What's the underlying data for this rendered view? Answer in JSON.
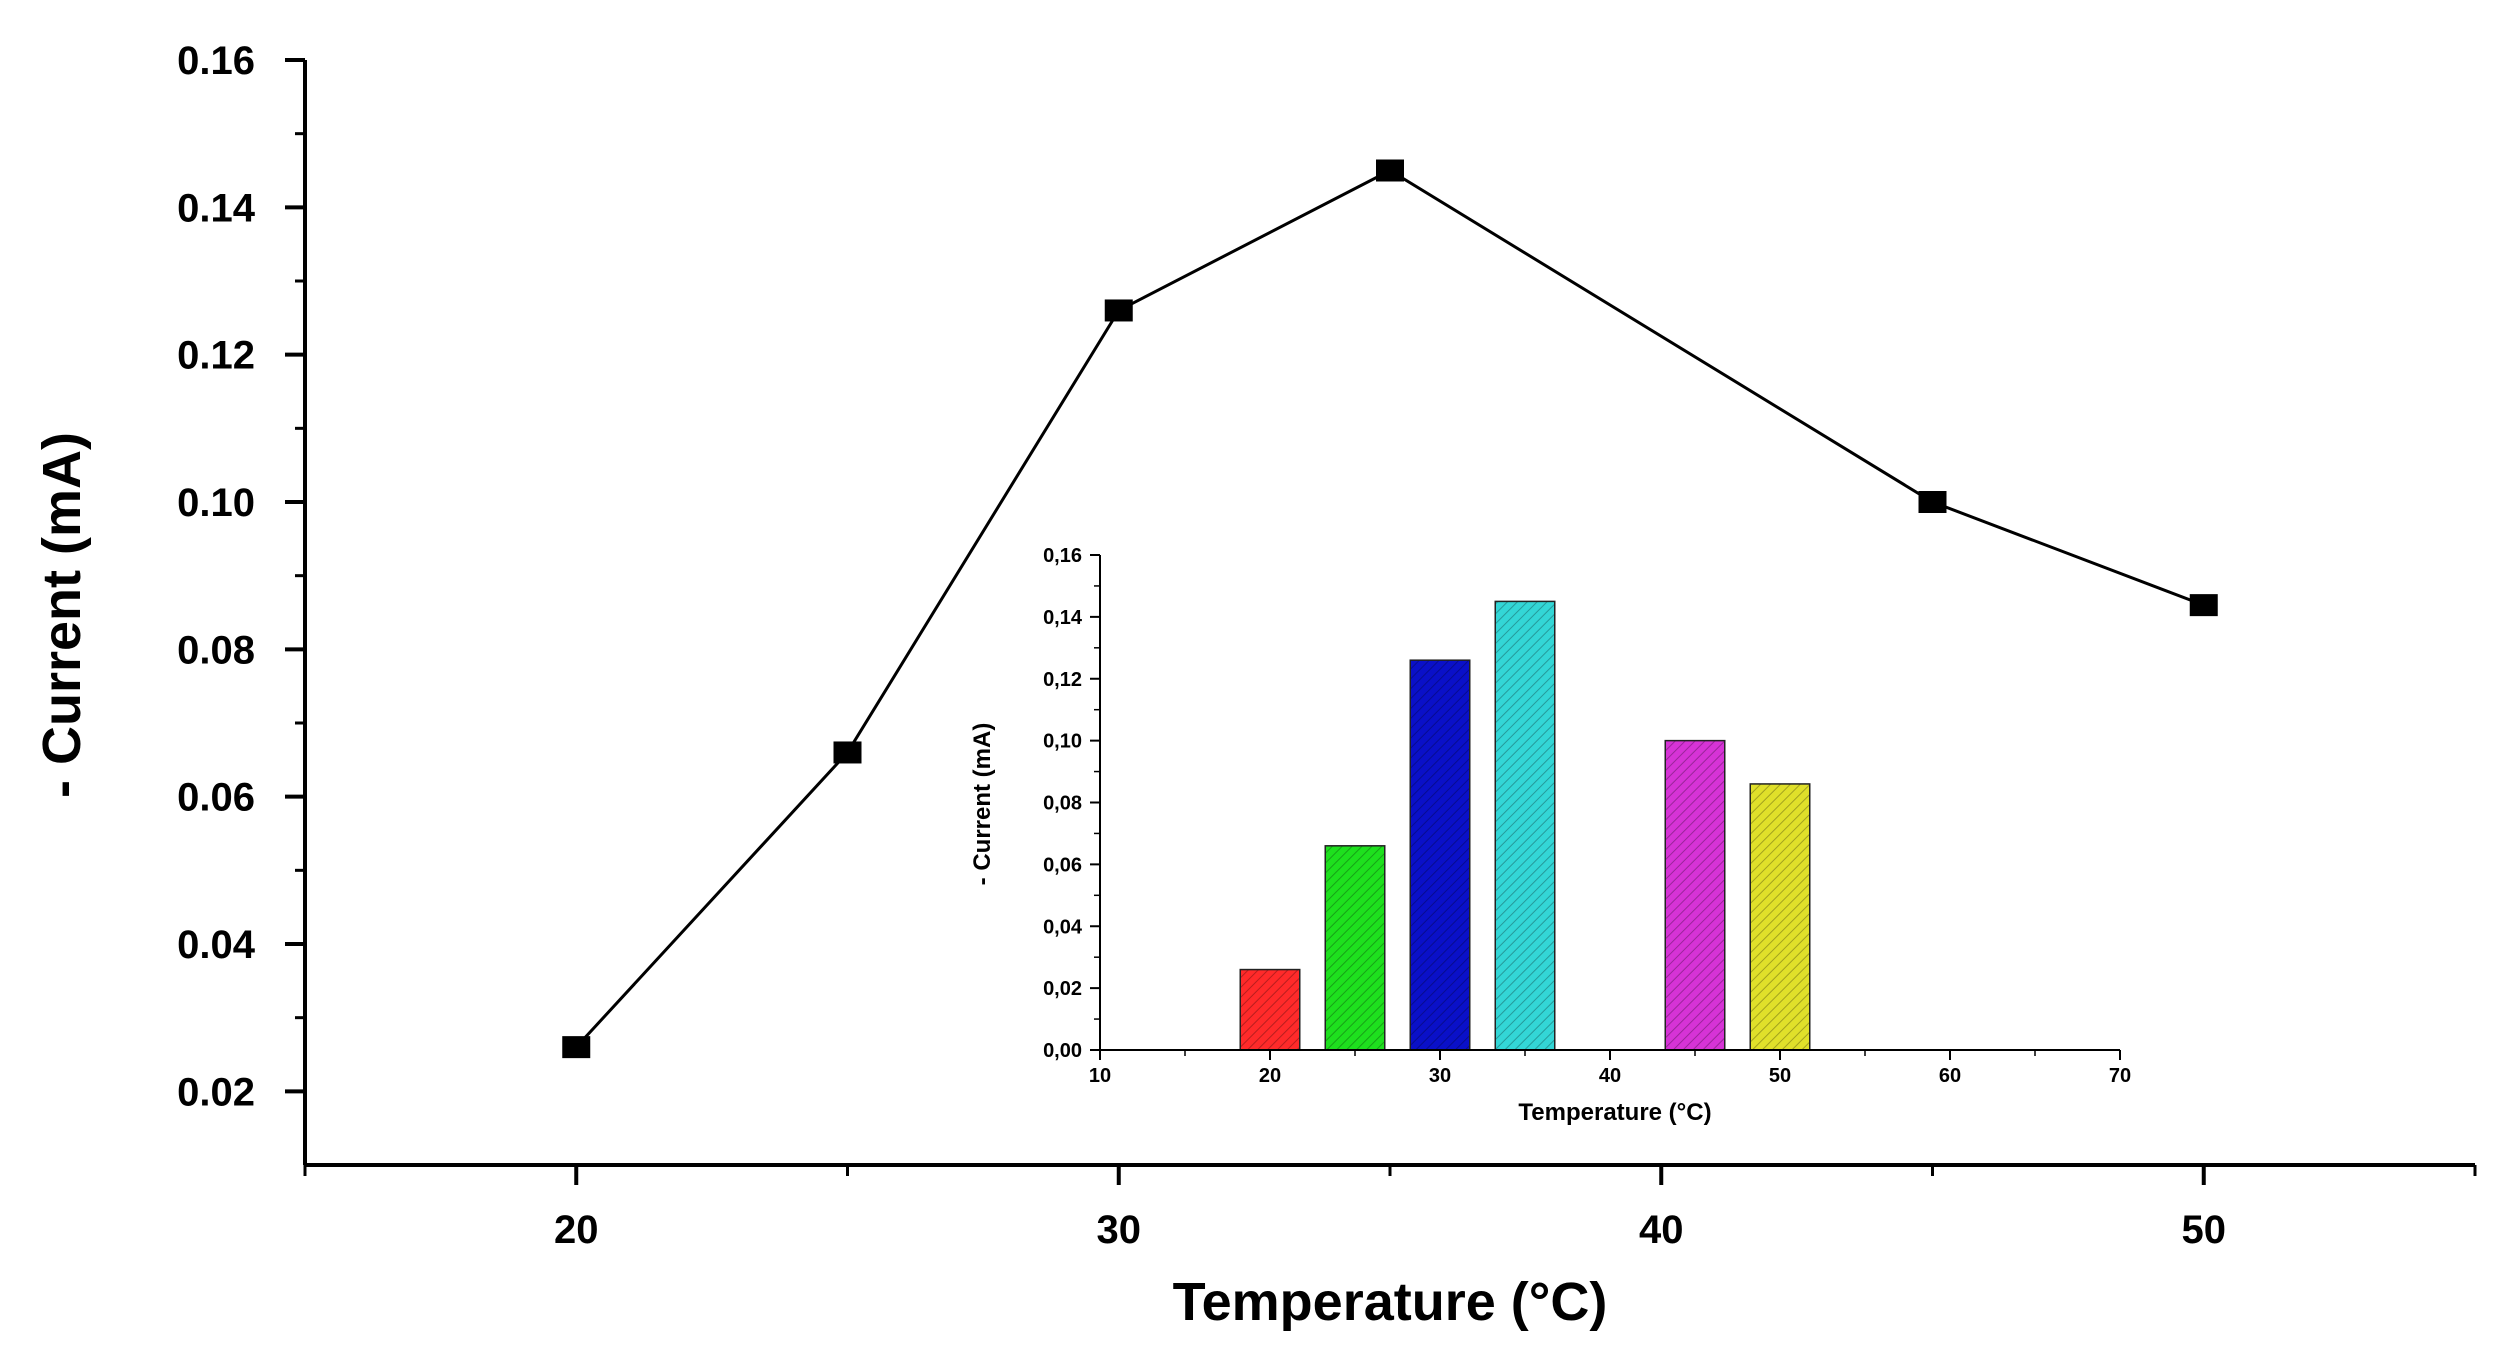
{
  "chart_data": [
    {
      "type": "line",
      "name": "main",
      "xlabel": "Temperature (°C)",
      "ylabel": "- Current (mA)",
      "xlim": [
        15,
        55
      ],
      "ylim": [
        0.01,
        0.16
      ],
      "xticks": [
        20,
        30,
        40,
        50
      ],
      "yticks": [
        0.02,
        0.04,
        0.06,
        0.08,
        0.1,
        0.12,
        0.14,
        0.16
      ],
      "ytick_labels": [
        "0.02",
        "0.04",
        "0.06",
        "0.08",
        "0.10",
        "0.12",
        "0.14",
        "0.16"
      ],
      "xtick_labels": [
        "20",
        "30",
        "40",
        "50"
      ],
      "x": [
        20,
        25,
        30,
        35,
        45,
        50
      ],
      "y": [
        0.026,
        0.066,
        0.126,
        0.145,
        0.1,
        0.086
      ],
      "marker": "square",
      "line_color": "#000000",
      "grid": false
    },
    {
      "type": "bar",
      "name": "inset",
      "xlabel": "Temperature (°C)",
      "ylabel": "- Current (mA)",
      "xlim": [
        10,
        70
      ],
      "ylim": [
        0,
        0.16
      ],
      "xticks": [
        10,
        20,
        30,
        40,
        50,
        60,
        70
      ],
      "xtick_labels": [
        "10",
        "20",
        "30",
        "40",
        "50",
        "60",
        "70"
      ],
      "yticks": [
        0,
        0.02,
        0.04,
        0.06,
        0.08,
        0.1,
        0.12,
        0.14,
        0.16
      ],
      "ytick_labels": [
        "0,00",
        "0,02",
        "0,04",
        "0,06",
        "0,08",
        "0,10",
        "0,12",
        "0,14",
        "0,16"
      ],
      "x": [
        20,
        25,
        30,
        35,
        45,
        50
      ],
      "values": [
        0.026,
        0.066,
        0.126,
        0.145,
        0.1,
        0.086
      ],
      "bar_width": 3.5,
      "colors": [
        "#ff2a2a",
        "#1ee01e",
        "#0a10c8",
        "#33d6d6",
        "#d633d6",
        "#e0e02a"
      ],
      "pattern": "hatched",
      "grid": false
    }
  ]
}
